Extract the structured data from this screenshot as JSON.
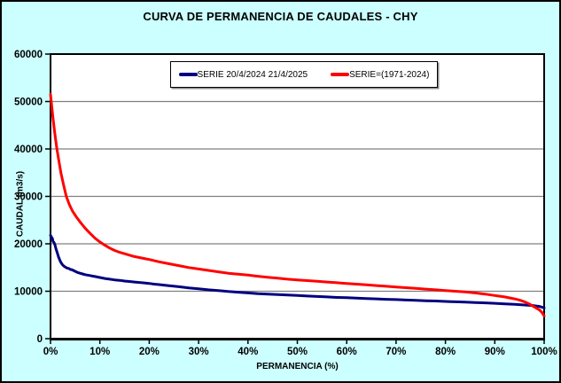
{
  "title": "CURVA DE PERMANENCIA DE CAUDALES - CHY",
  "colors": {
    "window_background": "#CCFFFF",
    "plot_background": "#FFFFFF",
    "gridline": "#808080",
    "axis": "#000000",
    "series_blue": "#000080",
    "series_red": "#FF0000"
  },
  "legend": {
    "items": [
      {
        "label": "SERIE 20/4/2024 21/4/2025",
        "color": "#000080"
      },
      {
        "label": "SERIE=(1971-2024)",
        "color": "#FF0000"
      }
    ]
  },
  "chart_data": {
    "type": "line",
    "title": "CURVA DE PERMANENCIA DE CAUDALES - CHY",
    "xlabel": "PERMANENCIA (%)",
    "ylabel": "CAUDAL (m3/s)",
    "xlim": [
      0,
      100
    ],
    "ylim": [
      0,
      60000
    ],
    "grid": true,
    "legend_position": "top-center",
    "x_ticks": [
      {
        "value": 0,
        "label": "0%"
      },
      {
        "value": 10,
        "label": "10%"
      },
      {
        "value": 20,
        "label": "20%"
      },
      {
        "value": 30,
        "label": "30%"
      },
      {
        "value": 40,
        "label": "40%"
      },
      {
        "value": 50,
        "label": "50%"
      },
      {
        "value": 60,
        "label": "60%"
      },
      {
        "value": 70,
        "label": "70%"
      },
      {
        "value": 80,
        "label": "80%"
      },
      {
        "value": 90,
        "label": "90%"
      },
      {
        "value": 100,
        "label": "100%"
      }
    ],
    "y_ticks": [
      {
        "value": 0,
        "label": "0"
      },
      {
        "value": 10000,
        "label": "10000"
      },
      {
        "value": 20000,
        "label": "20000"
      },
      {
        "value": 30000,
        "label": "30000"
      },
      {
        "value": 40000,
        "label": "40000"
      },
      {
        "value": 50000,
        "label": "50000"
      },
      {
        "value": 60000,
        "label": "60000"
      }
    ],
    "series": [
      {
        "name": "SERIE 20/4/2024 21/4/2025",
        "color": "#000080",
        "points": [
          [
            0,
            21800
          ],
          [
            0.2,
            21400
          ],
          [
            0.4,
            21100
          ],
          [
            0.5,
            20500
          ],
          [
            0.7,
            20300
          ],
          [
            0.9,
            19800
          ],
          [
            1.1,
            19000
          ],
          [
            1.4,
            18000
          ],
          [
            1.6,
            17300
          ],
          [
            1.9,
            16500
          ],
          [
            2.1,
            16100
          ],
          [
            2.4,
            15600
          ],
          [
            2.7,
            15300
          ],
          [
            3,
            15100
          ],
          [
            3.3,
            14900
          ],
          [
            3.7,
            14800
          ],
          [
            4,
            14600
          ],
          [
            4.4,
            14500
          ],
          [
            4.8,
            14300
          ],
          [
            5.2,
            14100
          ],
          [
            5.6,
            13900
          ],
          [
            6,
            13800
          ],
          [
            6.5,
            13650
          ],
          [
            7,
            13500
          ],
          [
            7.5,
            13400
          ],
          [
            8,
            13300
          ],
          [
            8.5,
            13200
          ],
          [
            9,
            13100
          ],
          [
            10,
            12900
          ],
          [
            11,
            12700
          ],
          [
            12,
            12550
          ],
          [
            13,
            12400
          ],
          [
            14,
            12300
          ],
          [
            15,
            12150
          ],
          [
            16,
            12050
          ],
          [
            17,
            11950
          ],
          [
            18,
            11850
          ],
          [
            19,
            11750
          ],
          [
            20,
            11650
          ],
          [
            21,
            11500
          ],
          [
            22,
            11400
          ],
          [
            24,
            11150
          ],
          [
            26,
            10950
          ],
          [
            28,
            10700
          ],
          [
            30,
            10500
          ],
          [
            32,
            10300
          ],
          [
            34,
            10150
          ],
          [
            36,
            9950
          ],
          [
            38,
            9800
          ],
          [
            40,
            9650
          ],
          [
            42,
            9500
          ],
          [
            44,
            9400
          ],
          [
            46,
            9300
          ],
          [
            48,
            9200
          ],
          [
            50,
            9100
          ],
          [
            52,
            9000
          ],
          [
            54,
            8900
          ],
          [
            56,
            8800
          ],
          [
            58,
            8700
          ],
          [
            60,
            8650
          ],
          [
            62,
            8550
          ],
          [
            64,
            8450
          ],
          [
            66,
            8400
          ],
          [
            68,
            8300
          ],
          [
            70,
            8250
          ],
          [
            72,
            8150
          ],
          [
            74,
            8100
          ],
          [
            76,
            8000
          ],
          [
            78,
            7950
          ],
          [
            80,
            7850
          ],
          [
            82,
            7780
          ],
          [
            84,
            7700
          ],
          [
            86,
            7620
          ],
          [
            88,
            7550
          ],
          [
            90,
            7450
          ],
          [
            92,
            7350
          ],
          [
            94,
            7250
          ],
          [
            96,
            7100
          ],
          [
            98,
            6950
          ],
          [
            99,
            6800
          ],
          [
            100,
            6500
          ]
        ]
      },
      {
        "name": "SERIE=(1971-2024)",
        "color": "#FF0000",
        "points": [
          [
            0,
            51500
          ],
          [
            0.2,
            49500
          ],
          [
            0.5,
            46500
          ],
          [
            0.8,
            43800
          ],
          [
            1,
            42200
          ],
          [
            1.3,
            40000
          ],
          [
            1.7,
            37400
          ],
          [
            2.1,
            35000
          ],
          [
            2.6,
            32600
          ],
          [
            3.2,
            30000
          ],
          [
            3.8,
            28300
          ],
          [
            4.5,
            26800
          ],
          [
            5.2,
            25700
          ],
          [
            6,
            24600
          ],
          [
            7,
            23300
          ],
          [
            8,
            22200
          ],
          [
            9,
            21200
          ],
          [
            10,
            20400
          ],
          [
            11,
            19700
          ],
          [
            12,
            19100
          ],
          [
            13,
            18600
          ],
          [
            14,
            18200
          ],
          [
            15,
            17900
          ],
          [
            16,
            17600
          ],
          [
            17,
            17300
          ],
          [
            18,
            17100
          ],
          [
            19,
            16900
          ],
          [
            20,
            16700
          ],
          [
            22,
            16200
          ],
          [
            24,
            15800
          ],
          [
            26,
            15400
          ],
          [
            28,
            15000
          ],
          [
            30,
            14700
          ],
          [
            32,
            14400
          ],
          [
            34,
            14100
          ],
          [
            36,
            13800
          ],
          [
            38,
            13600
          ],
          [
            40,
            13400
          ],
          [
            42,
            13150
          ],
          [
            44,
            12950
          ],
          [
            46,
            12750
          ],
          [
            48,
            12550
          ],
          [
            50,
            12400
          ],
          [
            52,
            12250
          ],
          [
            54,
            12100
          ],
          [
            56,
            11950
          ],
          [
            58,
            11800
          ],
          [
            60,
            11650
          ],
          [
            62,
            11500
          ],
          [
            64,
            11350
          ],
          [
            66,
            11200
          ],
          [
            68,
            11050
          ],
          [
            70,
            10900
          ],
          [
            72,
            10750
          ],
          [
            74,
            10600
          ],
          [
            76,
            10450
          ],
          [
            78,
            10300
          ],
          [
            80,
            10150
          ],
          [
            82,
            10000
          ],
          [
            84,
            9850
          ],
          [
            86,
            9650
          ],
          [
            88,
            9400
          ],
          [
            90,
            9100
          ],
          [
            91,
            8950
          ],
          [
            92,
            8800
          ],
          [
            93,
            8600
          ],
          [
            94,
            8400
          ],
          [
            95,
            8150
          ],
          [
            96,
            7800
          ],
          [
            97,
            7300
          ],
          [
            98,
            6700
          ],
          [
            99,
            6100
          ],
          [
            99.5,
            5600
          ],
          [
            100,
            4800
          ]
        ]
      }
    ]
  }
}
